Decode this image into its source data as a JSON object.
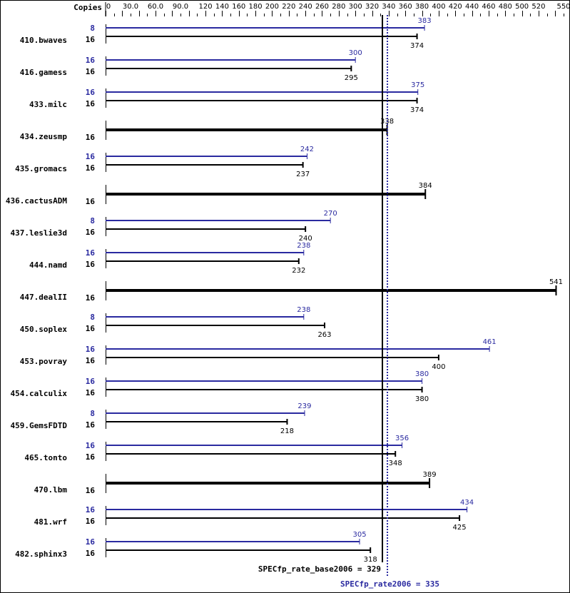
{
  "colors": {
    "base": "#000000",
    "peak": "#2a2aa0",
    "background": "#ffffff"
  },
  "header": {
    "copies_label": "Copies"
  },
  "axis": {
    "ticks": [
      "0",
      "30.0",
      "60.0",
      "90.0",
      "120",
      "140",
      "160",
      "180",
      "200",
      "220",
      "240",
      "260",
      "280",
      "300",
      "320",
      "340",
      "360",
      "380",
      "400",
      "420",
      "440",
      "460",
      "480",
      "500",
      "520",
      "550"
    ],
    "tick_values": [
      0,
      30,
      60,
      90,
      120,
      140,
      160,
      180,
      200,
      220,
      240,
      260,
      280,
      300,
      320,
      340,
      360,
      380,
      400,
      420,
      440,
      460,
      480,
      500,
      520,
      550
    ],
    "min": 0,
    "max": 550,
    "minor_step": 10
  },
  "summary": {
    "base_label": "SPECfp_rate_base2006 = 329",
    "base_value": 329,
    "peak_label": "SPECfp_rate2006 = 335",
    "peak_value": 335
  },
  "chart_data": {
    "type": "bar",
    "title": "",
    "xlabel": "",
    "ylabel": "Copies",
    "xlim": [
      0,
      550
    ],
    "orientation": "horizontal",
    "legend": [
      {
        "name": "SPECfp_rate2006 (peak)",
        "color": "#2a2aa0"
      },
      {
        "name": "SPECfp_rate_base2006 (base)",
        "color": "#000000"
      }
    ],
    "categories": [
      "410.bwaves",
      "416.gamess",
      "433.milc",
      "434.zeusmp",
      "435.gromacs",
      "436.cactusADM",
      "437.leslie3d",
      "444.namd",
      "447.dealII",
      "450.soplex",
      "453.povray",
      "454.calculix",
      "459.GemsFDTD",
      "465.tonto",
      "470.lbm",
      "481.wrf",
      "482.sphinx3"
    ],
    "series": [
      {
        "name": "peak",
        "copies": [
          8,
          16,
          16,
          null,
          16,
          null,
          8,
          16,
          null,
          8,
          16,
          16,
          8,
          16,
          null,
          16,
          16
        ],
        "values": [
          383,
          300,
          375,
          null,
          242,
          null,
          270,
          238,
          null,
          238,
          461,
          380,
          239,
          356,
          null,
          434,
          305
        ]
      },
      {
        "name": "base",
        "copies": [
          16,
          16,
          16,
          16,
          16,
          16,
          16,
          16,
          16,
          16,
          16,
          16,
          16,
          16,
          16,
          16,
          16
        ],
        "values": [
          374,
          295,
          374,
          338,
          237,
          384,
          240,
          232,
          541,
          263,
          400,
          380,
          218,
          348,
          389,
          425,
          318
        ]
      }
    ],
    "summary_lines": [
      {
        "name": "SPECfp_rate_base2006",
        "value": 329
      },
      {
        "name": "SPECfp_rate2006",
        "value": 335
      }
    ]
  },
  "benchmarks": [
    {
      "name": "410.bwaves",
      "peak_copies": "8",
      "peak": 383,
      "base_copies": "16",
      "base": 374
    },
    {
      "name": "416.gamess",
      "peak_copies": "16",
      "peak": 300,
      "base_copies": "16",
      "base": 295
    },
    {
      "name": "433.milc",
      "peak_copies": "16",
      "peak": 375,
      "base_copies": "16",
      "base": 374
    },
    {
      "name": "434.zeusmp",
      "peak_copies": null,
      "peak": null,
      "base_copies": "16",
      "base": 338
    },
    {
      "name": "435.gromacs",
      "peak_copies": "16",
      "peak": 242,
      "base_copies": "16",
      "base": 237
    },
    {
      "name": "436.cactusADM",
      "peak_copies": null,
      "peak": null,
      "base_copies": "16",
      "base": 384
    },
    {
      "name": "437.leslie3d",
      "peak_copies": "8",
      "peak": 270,
      "base_copies": "16",
      "base": 240
    },
    {
      "name": "444.namd",
      "peak_copies": "16",
      "peak": 238,
      "base_copies": "16",
      "base": 232
    },
    {
      "name": "447.dealII",
      "peak_copies": null,
      "peak": null,
      "base_copies": "16",
      "base": 541
    },
    {
      "name": "450.soplex",
      "peak_copies": "8",
      "peak": 238,
      "base_copies": "16",
      "base": 263
    },
    {
      "name": "453.povray",
      "peak_copies": "16",
      "peak": 461,
      "base_copies": "16",
      "base": 400
    },
    {
      "name": "454.calculix",
      "peak_copies": "16",
      "peak": 380,
      "base_copies": "16",
      "base": 380
    },
    {
      "name": "459.GemsFDTD",
      "peak_copies": "8",
      "peak": 239,
      "base_copies": "16",
      "base": 218
    },
    {
      "name": "465.tonto",
      "peak_copies": "16",
      "peak": 356,
      "base_copies": "16",
      "base": 348
    },
    {
      "name": "470.lbm",
      "peak_copies": null,
      "peak": null,
      "base_copies": "16",
      "base": 389
    },
    {
      "name": "481.wrf",
      "peak_copies": "16",
      "peak": 434,
      "base_copies": "16",
      "base": 425
    },
    {
      "name": "482.sphinx3",
      "peak_copies": "16",
      "peak": 305,
      "base_copies": "16",
      "base": 318
    }
  ]
}
